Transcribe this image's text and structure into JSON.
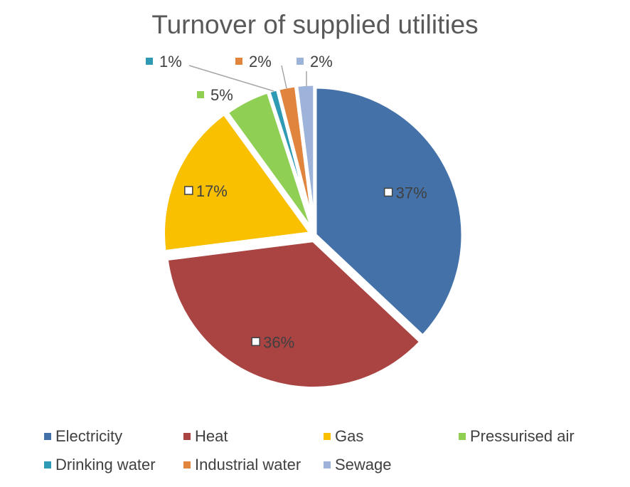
{
  "chart_data": {
    "type": "pie",
    "title": "Turnover of supplied utilities",
    "categories": [
      "Electricity",
      "Heat",
      "Gas",
      "Pressurised air",
      "Drinking water",
      "Industrial water",
      "Sewage"
    ],
    "values": [
      37,
      36,
      17,
      5,
      1,
      2,
      2
    ],
    "labels": [
      "37%",
      "36%",
      "17%",
      "5%",
      "1%",
      "2%",
      "2%"
    ],
    "colors": [
      "#4472a8",
      "#a94442",
      "#f9c000",
      "#8fcf54",
      "#2e9ab3",
      "#e0843e",
      "#9db3d9"
    ],
    "legend_position": "bottom"
  }
}
